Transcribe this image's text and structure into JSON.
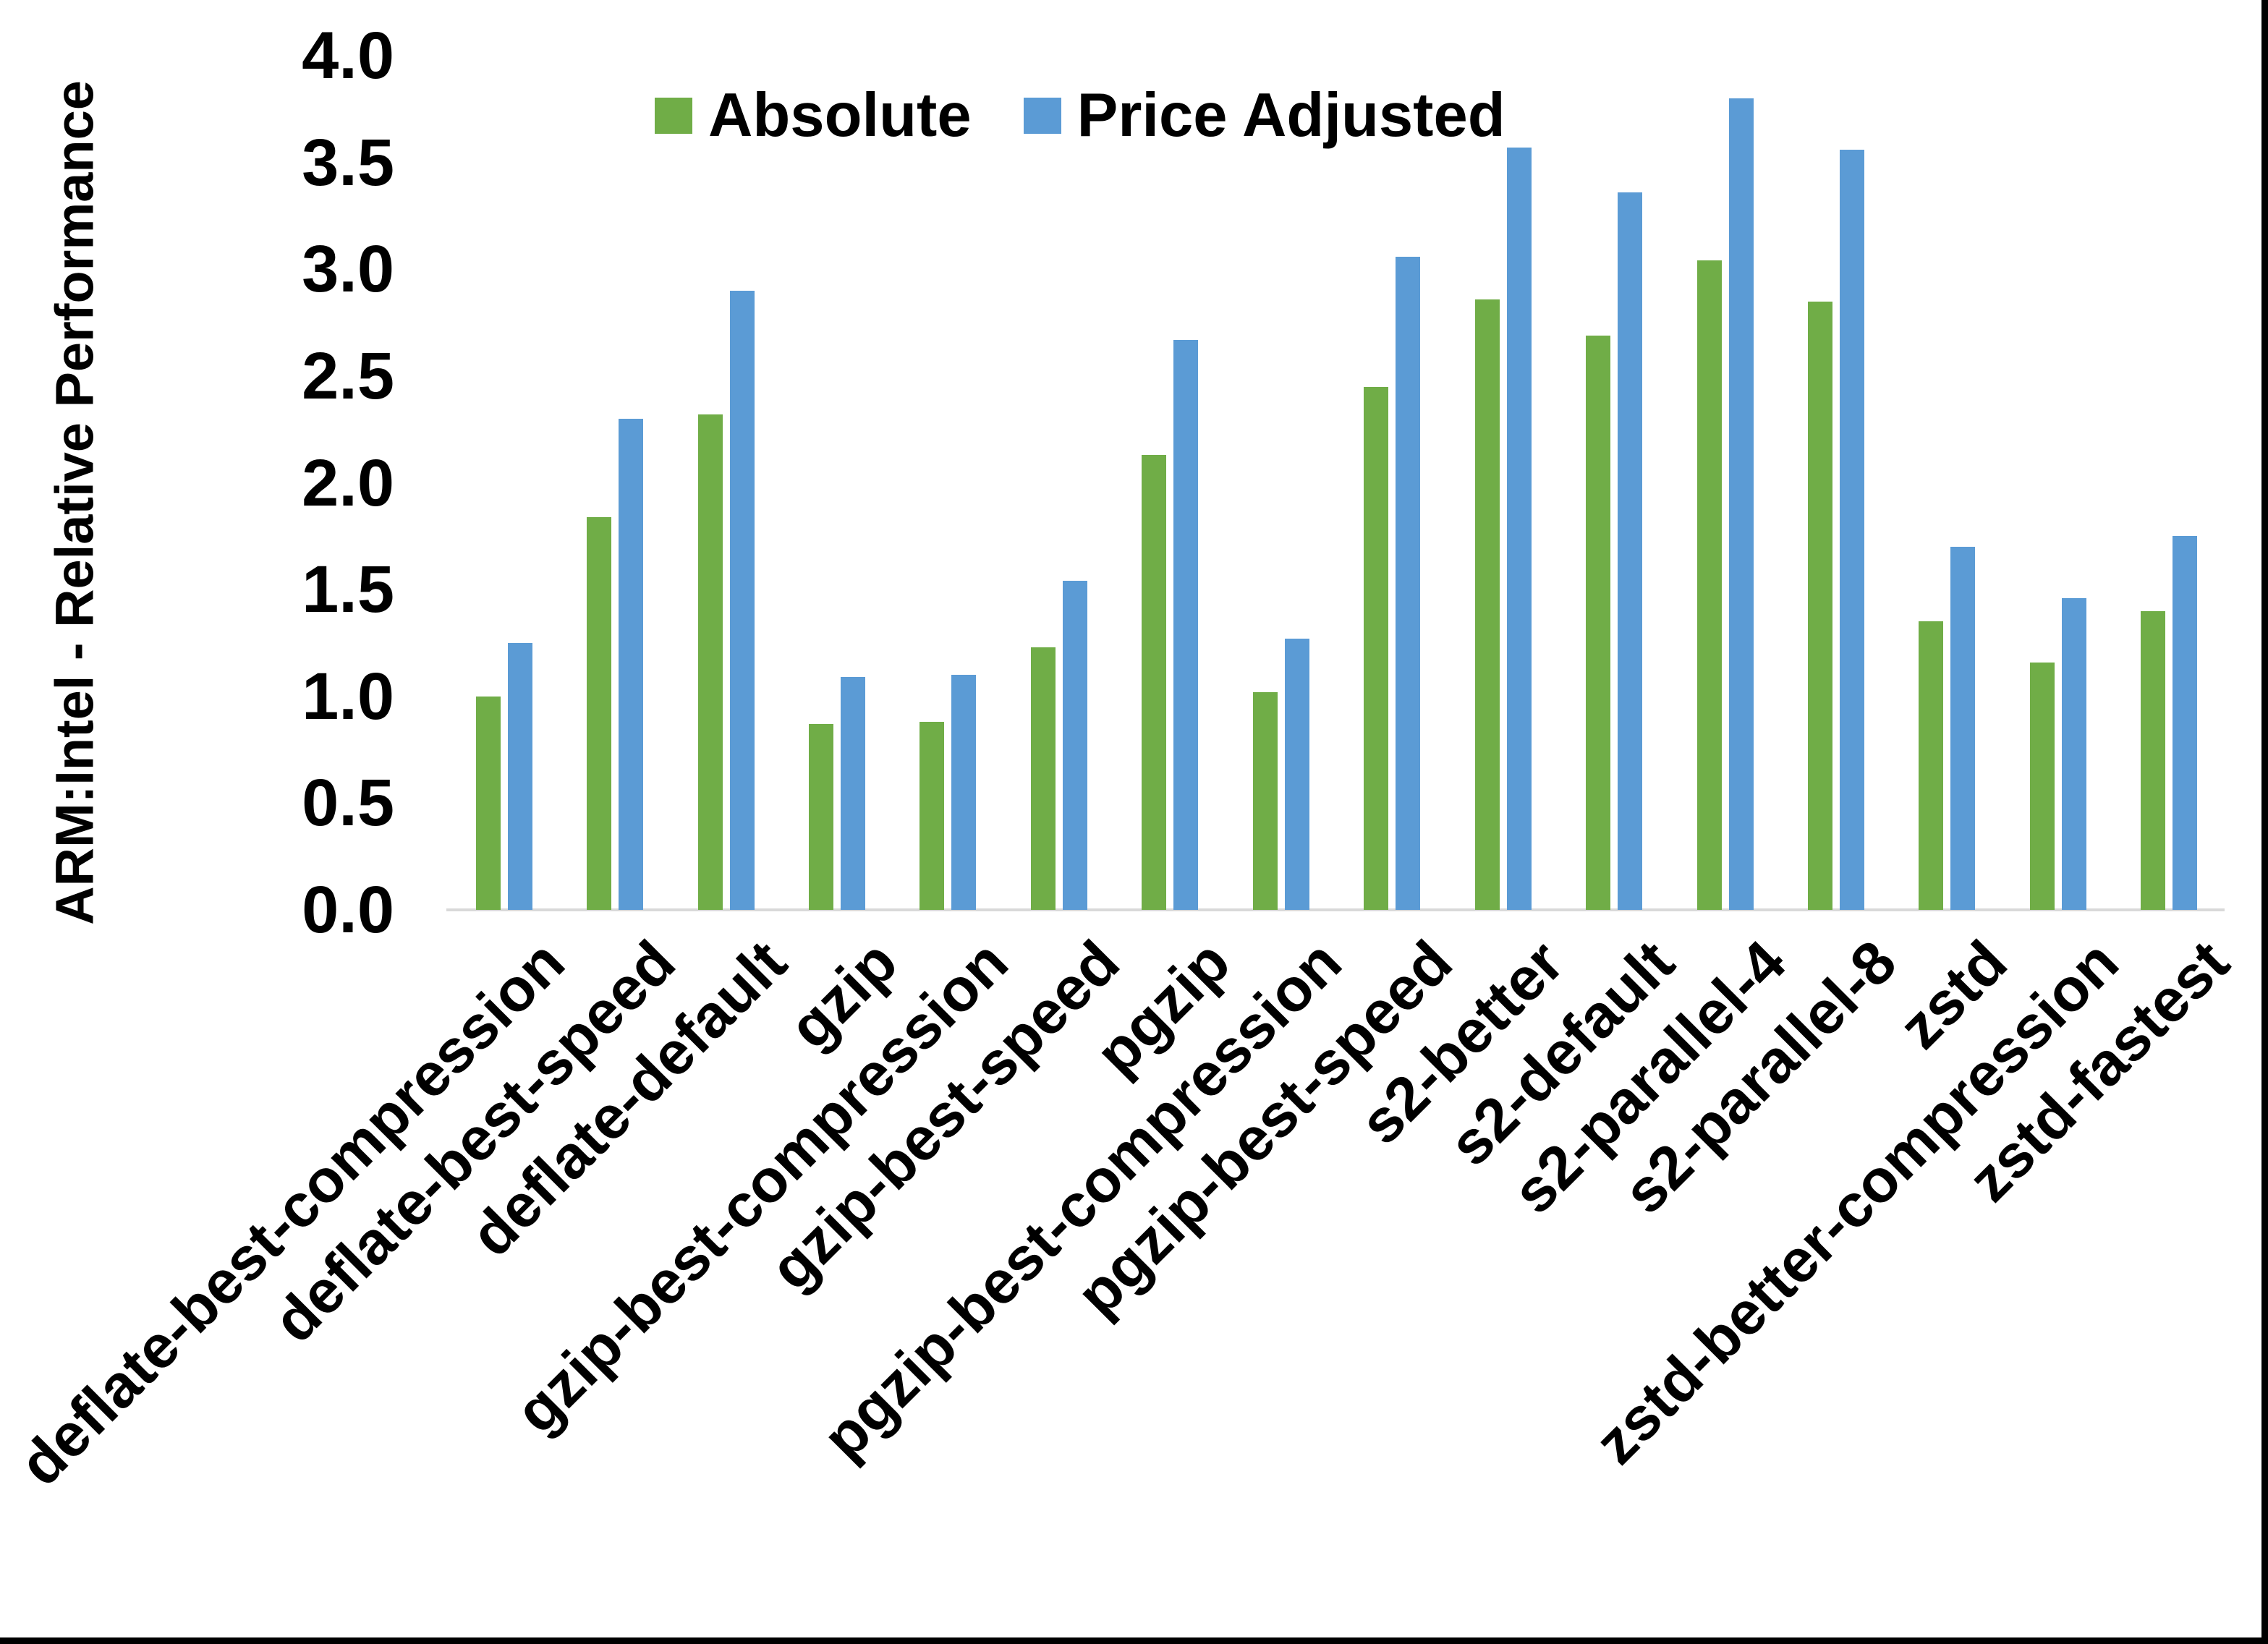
{
  "chart_data": {
    "type": "bar",
    "title": "",
    "ylabel": "ARM:Intel - Relative Performance",
    "xlabel": "",
    "ylim": [
      0.0,
      4.0
    ],
    "y_ticks": [
      "0.0",
      "0.5",
      "1.0",
      "1.5",
      "2.0",
      "2.5",
      "3.0",
      "3.5",
      "4.0"
    ],
    "grid": false,
    "legend_position": "top-center",
    "categories": [
      "deflate-best-compression",
      "deflate-best-speed",
      "deflate-default",
      "gzip",
      "gzip-best-compression",
      "gzip-best-speed",
      "pgzip",
      "pgzip-best-compression",
      "pgzip-best-speed",
      "s2-better",
      "s2-default",
      "s2-parallel-4",
      "s2-parallel-8",
      "zstd",
      "zstd-better-compression",
      "zstd-fastest"
    ],
    "series": [
      {
        "name": "Absolute",
        "color": "#70AD47",
        "values": [
          1.0,
          1.84,
          2.32,
          0.87,
          0.88,
          1.23,
          2.13,
          1.02,
          2.45,
          2.86,
          2.69,
          3.04,
          2.85,
          1.35,
          1.16,
          1.4
        ]
      },
      {
        "name": "Price Adjusted",
        "color": "#5B9BD5",
        "values": [
          1.25,
          2.3,
          2.9,
          1.09,
          1.1,
          1.54,
          2.67,
          1.27,
          3.06,
          3.57,
          3.36,
          3.8,
          3.56,
          1.7,
          1.46,
          1.75
        ]
      }
    ],
    "colors": {
      "axis_line": "#d9d9d9",
      "text": "#000000",
      "frame": "#000000"
    }
  }
}
